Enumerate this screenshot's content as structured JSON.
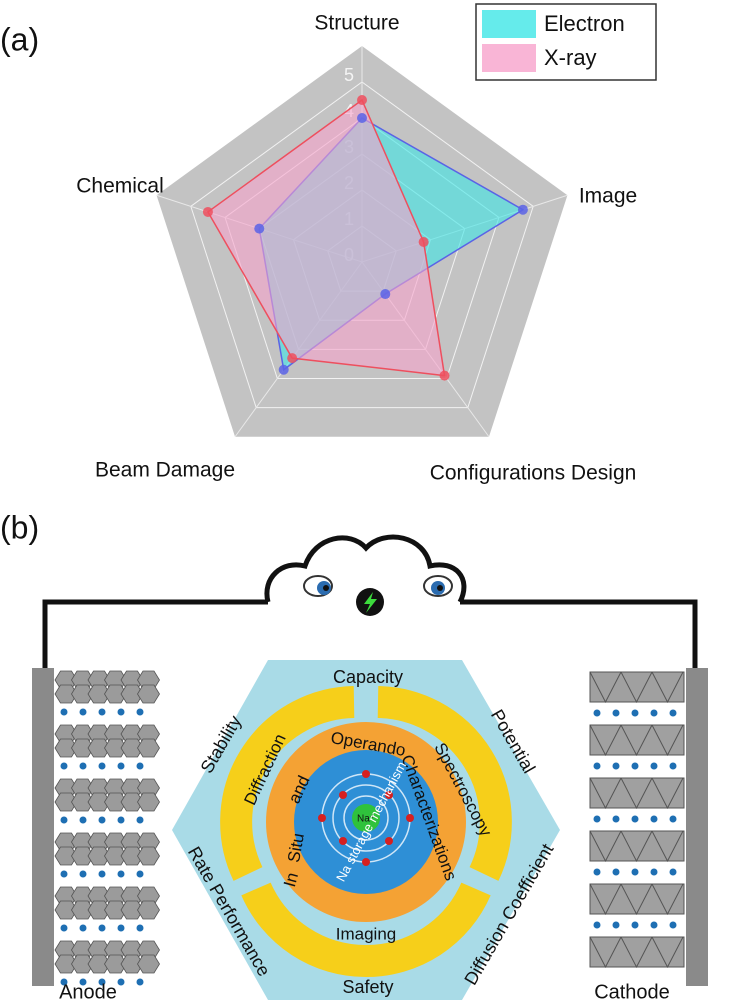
{
  "panel_a_label": "(a)",
  "chart_data": {
    "type": "radar",
    "categories": [
      "Structure",
      "Image",
      "Configurations Design",
      "Beam Damage",
      "Chemical"
    ],
    "series": [
      {
        "name": "Electron",
        "color": "#5a63e6",
        "fill": "#3ee6e6",
        "values": [
          4,
          4.7,
          1.1,
          3.7,
          3.0
        ]
      },
      {
        "name": "X-ray",
        "color": "#ee4f5e",
        "fill": "#f7a3cc",
        "values": [
          4.5,
          1.8,
          3.9,
          3.3,
          4.5
        ]
      }
    ],
    "ylim": [
      0,
      6
    ],
    "yticks": [
      0,
      1,
      2,
      3,
      4,
      5
    ],
    "grid": true,
    "legend": "upper right"
  },
  "panel_b": {
    "label": "(b)",
    "anode": "Anode",
    "cathode": "Cathode",
    "hexagon": [
      "Capacity",
      "Potential",
      "Diffusion Coefficient",
      "Safety",
      "Rate Performance",
      "Stability"
    ],
    "ring": [
      "Operando",
      "Spectroscopy",
      "Characterizations",
      "Imaging",
      "In",
      "Situ",
      "and",
      "Diffraction"
    ],
    "core": "Na storage mechanism",
    "ion": "Na⁺"
  }
}
